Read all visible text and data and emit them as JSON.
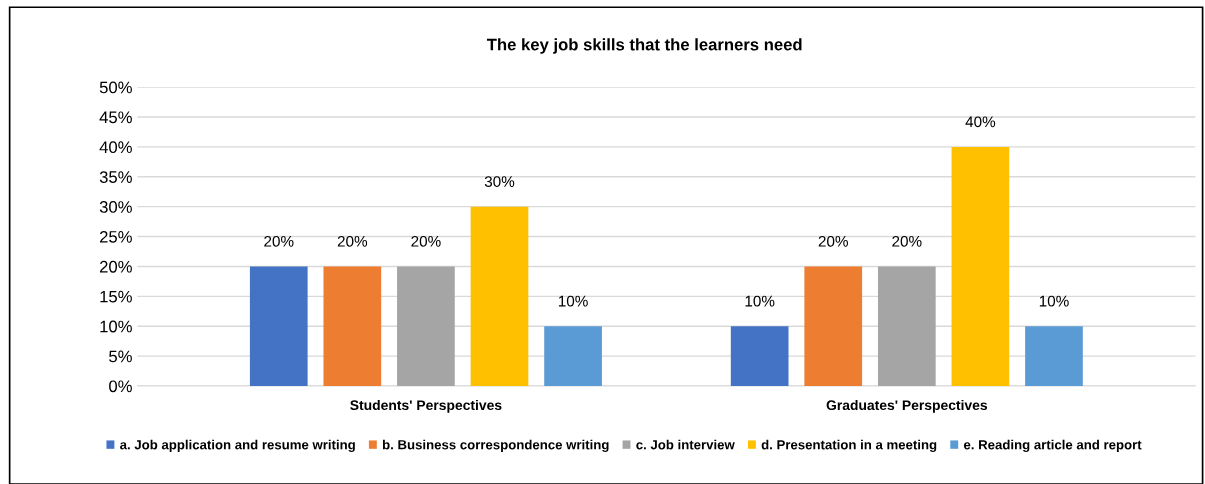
{
  "chart_data": {
    "type": "bar",
    "title": "The key job skills that the learners need",
    "categories": [
      "Students' Perspectives",
      "Graduates' Perspectives"
    ],
    "series": [
      {
        "name": "a. Job application and resume writing",
        "color": "#4472c4",
        "values": [
          20,
          10
        ],
        "value_labels": [
          "20%",
          "10%"
        ]
      },
      {
        "name": "b. Business correspondence writing",
        "color": "#ed7d31",
        "values": [
          20,
          20
        ],
        "value_labels": [
          "20%",
          "20%"
        ]
      },
      {
        "name": "c. Job interview",
        "color": "#a5a5a5",
        "values": [
          20,
          20
        ],
        "value_labels": [
          "20%",
          "20%"
        ]
      },
      {
        "name": "d. Presentation in a meeting",
        "color": "#ffc000",
        "values": [
          30,
          40
        ],
        "value_labels": [
          "30%",
          "40%"
        ]
      },
      {
        "name": "e. Reading article and report",
        "color": "#5b9bd5",
        "values": [
          10,
          10
        ],
        "value_labels": [
          "10%",
          "10%"
        ]
      }
    ],
    "ylim": [
      0,
      50
    ],
    "yticks": [
      {
        "value": 0,
        "label": "0%"
      },
      {
        "value": 5,
        "label": "5%"
      },
      {
        "value": 10,
        "label": "10%"
      },
      {
        "value": 15,
        "label": "15%"
      },
      {
        "value": 20,
        "label": "20%"
      },
      {
        "value": 25,
        "label": "25%"
      },
      {
        "value": 30,
        "label": "30%"
      },
      {
        "value": 35,
        "label": "35%"
      },
      {
        "value": 40,
        "label": "40%"
      },
      {
        "value": 45,
        "label": "45%"
      },
      {
        "value": 50,
        "label": "50%"
      }
    ],
    "grid": "y",
    "legend": "bottom"
  }
}
